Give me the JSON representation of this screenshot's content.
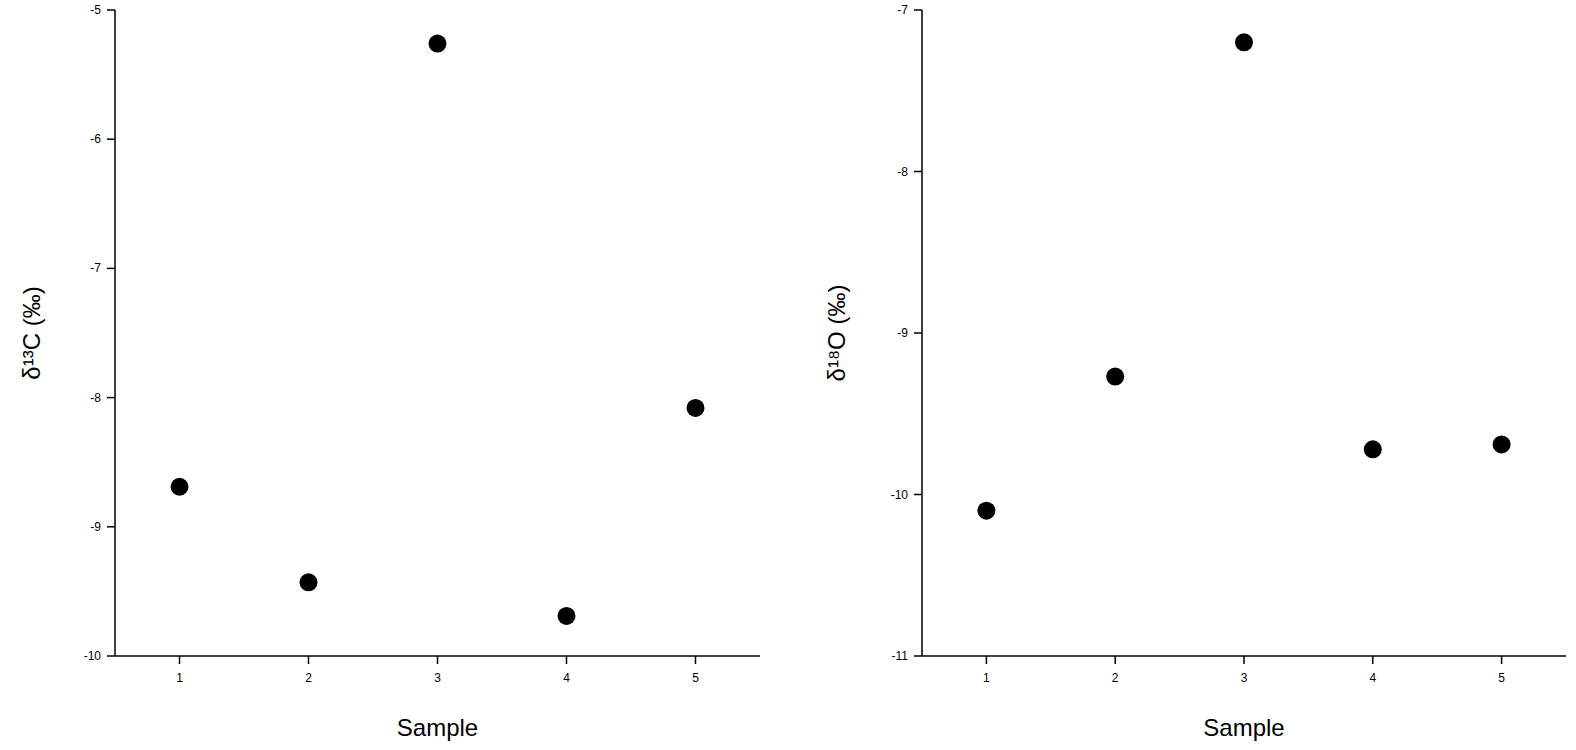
{
  "chart_data": [
    {
      "type": "scatter",
      "x_label": "Sample",
      "y_label": "δ¹³C (‰)",
      "x": [
        1,
        2,
        3,
        4,
        5
      ],
      "values": [
        -8.69,
        -9.43,
        -5.26,
        -9.69,
        -8.08
      ],
      "color": "#000000",
      "marker": "circle",
      "xlim": [
        0.5,
        5.5
      ],
      "xticks": [
        1,
        2,
        3,
        4,
        5
      ],
      "ylim": [
        -10,
        -5
      ],
      "yticks": [
        -10,
        -9,
        -8,
        -7,
        -6,
        -5
      ],
      "grid": false
    },
    {
      "type": "scatter",
      "x_label": "Sample",
      "y_label": "δ¹⁸O (‰)",
      "x": [
        1,
        2,
        3,
        4,
        5
      ],
      "values": [
        -10.1,
        -9.27,
        -7.2,
        -9.72,
        -9.69
      ],
      "color": "#000000",
      "marker": "circle",
      "xlim": [
        0.5,
        5.5
      ],
      "xticks": [
        1,
        2,
        3,
        4,
        5
      ],
      "ylim": [
        -11,
        -7
      ],
      "yticks": [
        -11,
        -10,
        -9,
        -8,
        -7
      ],
      "grid": false
    }
  ]
}
